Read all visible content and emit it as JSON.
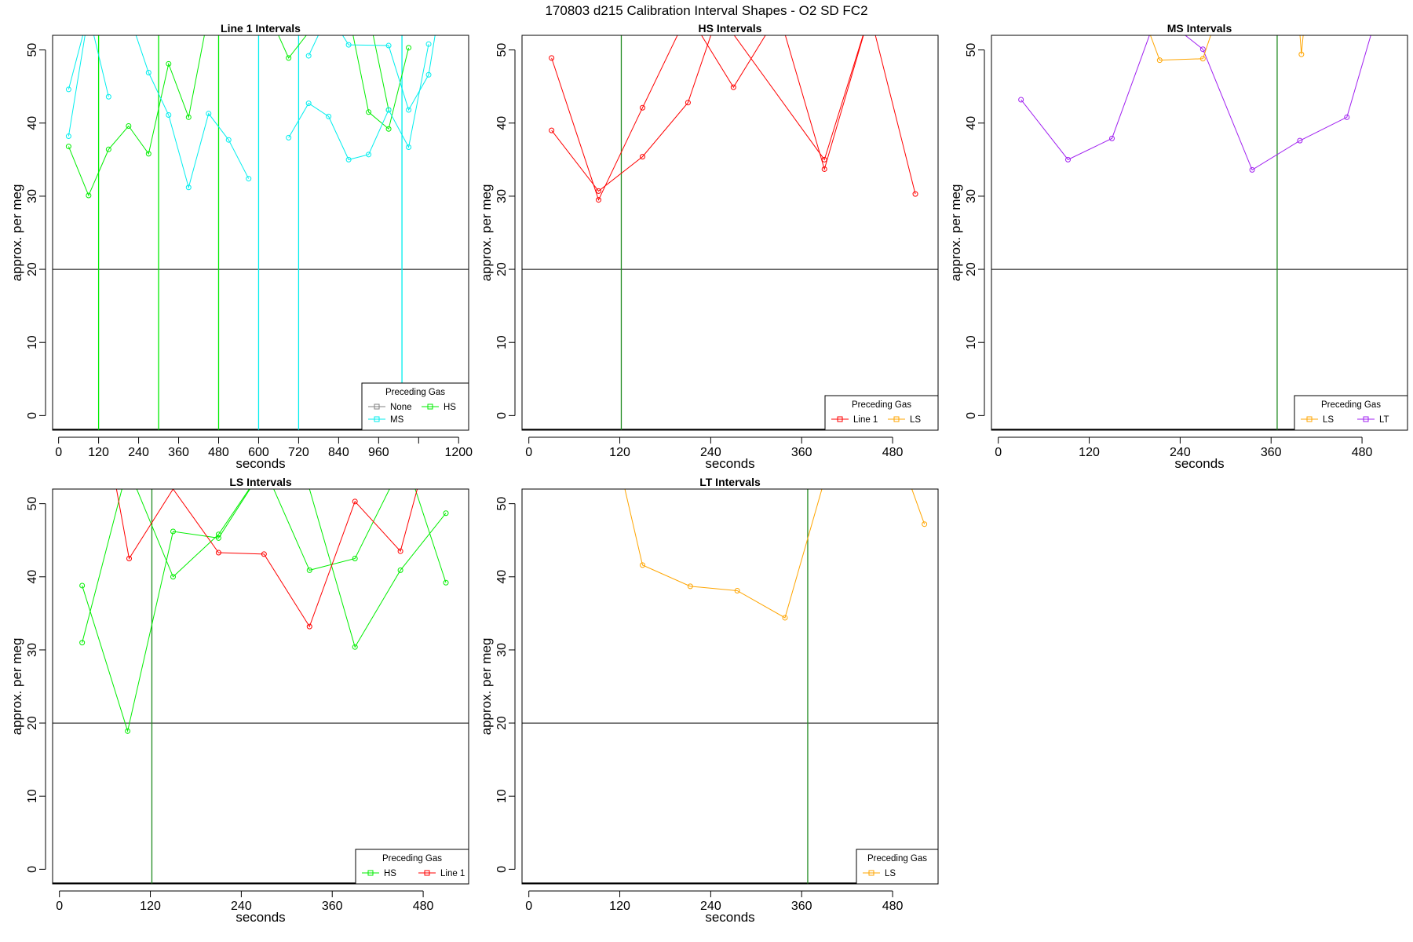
{
  "figure_title": "170803   d215   Calibration Interval Shapes - O2 SD FC2",
  "legend_title": "Preceding Gas",
  "colors": {
    "Line 1": "#ff0000",
    "HS": "#00ee00",
    "MS": "#00eeee",
    "LS": "#ffa500",
    "LT": "#a020f0",
    "None": "#808080"
  },
  "chart_data": [
    {
      "type": "line",
      "title": "Line 1 Intervals",
      "xlabel": "seconds",
      "ylabel": "approx. per meg",
      "xlim": [
        -18,
        1230
      ],
      "ylim": [
        -2,
        52
      ],
      "xticks": [
        0,
        120,
        240,
        360,
        480,
        600,
        720,
        840,
        960,
        1080,
        1200
      ],
      "xtick_labels": [
        "0",
        "120",
        "240",
        "360",
        "480",
        "600",
        "720",
        "840",
        "960",
        "",
        "1200"
      ],
      "yticks": [
        0,
        10,
        20,
        30,
        40,
        50
      ],
      "hline": 20,
      "legend": {
        "position": "bottom-right",
        "ncol": 2,
        "entries": [
          "None",
          "HS",
          "MS"
        ]
      },
      "vlines": [
        {
          "x": 120,
          "series": "HS"
        },
        {
          "x": 300,
          "series": "HS"
        },
        {
          "x": 480,
          "series": "HS"
        },
        {
          "x": 600,
          "series": "MS"
        },
        {
          "x": 720,
          "series": "MS"
        },
        {
          "x": 1030,
          "series": "MS"
        }
      ],
      "series": [
        {
          "name": "HS",
          "x": [
            30,
            90,
            150,
            210,
            270,
            330,
            390,
            450
          ],
          "y": [
            36.8,
            30.1,
            36.4,
            39.6,
            35.8,
            48.1,
            40.8,
            55
          ]
        },
        {
          "name": "HS",
          "x": [
            60,
            120,
            180,
            240,
            300,
            360,
            420
          ],
          "y": [
            55,
            55,
            55,
            55,
            55,
            55,
            55
          ]
        },
        {
          "name": "HS",
          "x": [
            630,
            690,
            750,
            810,
            870,
            930,
            990,
            1050
          ],
          "y": [
            55,
            48.9,
            52.4,
            55,
            55,
            41.5,
            39.2,
            50.3
          ]
        },
        {
          "name": "HS",
          "x": [
            930,
            990
          ],
          "y": [
            55,
            41.8
          ]
        },
        {
          "name": "MS",
          "x": [
            30,
            90,
            150,
            210,
            270,
            330,
            390,
            450,
            510,
            570
          ],
          "y": [
            38.2,
            55,
            55,
            55,
            46.9,
            41.1,
            31.2,
            41.3,
            37.7,
            32.4
          ]
        },
        {
          "name": "MS",
          "x": [
            30,
            90,
            150
          ],
          "y": [
            44.6,
            55,
            43.6
          ]
        },
        {
          "name": "MS",
          "x": [
            690,
            750,
            810,
            870,
            930,
            990,
            1050,
            1110
          ],
          "y": [
            38.0,
            42.7,
            40.9,
            35.0,
            35.7,
            41.8,
            36.7,
            50.8
          ]
        },
        {
          "name": "MS",
          "x": [
            750,
            810,
            870,
            990,
            1050,
            1110,
            1140
          ],
          "y": [
            49.2,
            55,
            50.7,
            50.6,
            41.8,
            46.6,
            55
          ]
        }
      ]
    },
    {
      "type": "line",
      "title": "HS Intervals",
      "xlabel": "seconds",
      "ylabel": "approx. per meg",
      "xlim": [
        -9,
        540
      ],
      "ylim": [
        -2,
        52
      ],
      "xticks": [
        0,
        120,
        240,
        360,
        480
      ],
      "xtick_labels": [
        "0",
        "120",
        "240",
        "360",
        "480"
      ],
      "yticks": [
        0,
        10,
        20,
        30,
        40,
        50
      ],
      "hline": 20,
      "legend": {
        "position": "bottom-right",
        "ncol": 2,
        "entries": [
          "Line 1",
          "LS"
        ]
      },
      "vlines": [
        {
          "x": 122,
          "series": "Line 1"
        }
      ],
      "series": [
        {
          "name": "Line 1",
          "x": [
            30,
            92,
            150,
            210,
            270,
            330,
            390,
            450,
            510
          ],
          "y": [
            48.9,
            29.5,
            42.1,
            55,
            44.9,
            55,
            33.7,
            55,
            30.3
          ]
        },
        {
          "name": "Line 1",
          "x": [
            30,
            92,
            150,
            210,
            250,
            390,
            450
          ],
          "y": [
            39.0,
            30.7,
            35.4,
            42.8,
            55,
            35.0,
            55
          ]
        }
      ]
    },
    {
      "type": "line",
      "title": "MS Intervals",
      "xlabel": "seconds",
      "ylabel": "approx. per meg",
      "xlim": [
        -9,
        540
      ],
      "ylim": [
        -2,
        52
      ],
      "xticks": [
        0,
        120,
        240,
        360,
        480
      ],
      "xtick_labels": [
        "0",
        "120",
        "240",
        "360",
        "480"
      ],
      "yticks": [
        0,
        10,
        20,
        30,
        40,
        50
      ],
      "hline": 20,
      "legend": {
        "position": "bottom-right",
        "ncol": 2,
        "entries": [
          "LS",
          "LT"
        ]
      },
      "vlines": [
        {
          "x": 368,
          "series": "Line 1"
        }
      ],
      "series": [
        {
          "name": "LT",
          "x": [
            30,
            92,
            150,
            210,
            270,
            335,
            398,
            460,
            500
          ],
          "y": [
            43.2,
            35.0,
            37.9,
            55,
            50.1,
            33.6,
            37.6,
            40.8,
            55
          ]
        },
        {
          "name": "LS",
          "x": [
            190,
            213,
            270,
            290
          ],
          "y": [
            55,
            48.6,
            48.8,
            55
          ]
        },
        {
          "name": "LS",
          "x": [
            396,
            400,
            405
          ],
          "y": [
            55,
            49.4,
            55
          ]
        }
      ]
    },
    {
      "type": "line",
      "title": "LS Intervals",
      "xlabel": "seconds",
      "ylabel": "approx. per meg",
      "xlim": [
        -9,
        540
      ],
      "ylim": [
        -2,
        52
      ],
      "xticks": [
        0,
        120,
        240,
        360,
        480
      ],
      "xtick_labels": [
        "0",
        "120",
        "240",
        "360",
        "480"
      ],
      "yticks": [
        0,
        10,
        20,
        30,
        40,
        50
      ],
      "hline": 20,
      "legend": {
        "position": "bottom-right",
        "ncol": 2,
        "entries": [
          "HS",
          "Line 1"
        ]
      },
      "vlines": [
        {
          "x": 122,
          "series": "Line 1"
        }
      ],
      "series": [
        {
          "name": "HS",
          "x": [
            30,
            90,
            150,
            210,
            270,
            330,
            390,
            450,
            510
          ],
          "y": [
            38.8,
            18.9,
            46.2,
            45.3,
            55,
            40.9,
            42.5,
            55,
            55
          ]
        },
        {
          "name": "HS",
          "x": [
            30,
            90,
            150,
            210,
            270,
            330,
            390,
            450,
            510
          ],
          "y": [
            31.0,
            55,
            40.0,
            45.8,
            55,
            52,
            30.4,
            40.9,
            48.7
          ]
        },
        {
          "name": "HS",
          "x": [
            460,
            510
          ],
          "y": [
            55,
            39.2
          ]
        },
        {
          "name": "Line 1",
          "x": [
            70,
            92,
            150,
            210,
            270,
            330,
            390,
            450,
            480
          ],
          "y": [
            55,
            42.5,
            52,
            43.3,
            43.1,
            33.2,
            50.3,
            43.5,
            55
          ]
        }
      ]
    },
    {
      "type": "line",
      "title": "LT Intervals",
      "xlabel": "seconds",
      "ylabel": "approx. per meg",
      "xlim": [
        -9,
        540
      ],
      "ylim": [
        -2,
        52
      ],
      "xticks": [
        0,
        120,
        240,
        360,
        480
      ],
      "xtick_labels": [
        "0",
        "120",
        "240",
        "360",
        "480"
      ],
      "yticks": [
        0,
        10,
        20,
        30,
        40,
        50
      ],
      "hline": 20,
      "legend": {
        "position": "bottom-right",
        "ncol": 1,
        "entries": [
          "LS"
        ]
      },
      "vlines": [
        {
          "x": 368,
          "series": "Line 1"
        }
      ],
      "series": [
        {
          "name": "LS",
          "x": [
            120,
            150,
            213,
            275,
            338,
            395
          ],
          "y": [
            55,
            41.6,
            38.7,
            38.1,
            34.4,
            55
          ]
        },
        {
          "name": "LS",
          "x": [
            495,
            522
          ],
          "y": [
            55,
            47.2
          ]
        }
      ]
    }
  ]
}
